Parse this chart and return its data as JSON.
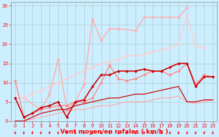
{
  "bg_color": "#cceeff",
  "grid_color": "#aacccc",
  "xlabel": "Vent moyen/en rafales ( km/h )",
  "xlim": [
    -0.5,
    23.5
  ],
  "ylim": [
    0,
    31
  ],
  "xticks": [
    0,
    1,
    2,
    3,
    4,
    5,
    6,
    7,
    8,
    9,
    10,
    11,
    12,
    13,
    14,
    15,
    16,
    17,
    18,
    19,
    20,
    21,
    22,
    23
  ],
  "yticks": [
    0,
    5,
    10,
    15,
    20,
    25,
    30
  ],
  "lines": [
    {
      "x": [
        0,
        1,
        3,
        4,
        5,
        6,
        7,
        8,
        9,
        10,
        11,
        12,
        14,
        15,
        16,
        17,
        18,
        19,
        20
      ],
      "y": [
        6,
        6,
        3,
        7,
        16,
        3,
        5,
        9.5,
        26.5,
        21,
        24,
        24,
        23.5,
        27,
        27,
        27,
        27,
        27,
        29.5
      ],
      "color": "#ffaaaa",
      "lw": 1.0,
      "marker": "D",
      "ms": 2.0,
      "zorder": 2
    },
    {
      "x": [
        0,
        1,
        2,
        3,
        4,
        5,
        6,
        7,
        8,
        9,
        10,
        11,
        12,
        13,
        14,
        15,
        16,
        17,
        18,
        19,
        20,
        21,
        22
      ],
      "y": [
        6,
        6,
        7,
        8,
        9,
        10,
        11,
        12,
        13,
        14,
        15,
        15.5,
        16,
        17,
        17,
        17.5,
        18,
        18.5,
        19,
        20,
        27.5,
        19.5,
        19
      ],
      "color": "#ffcccc",
      "lw": 1.0,
      "marker": "D",
      "ms": 2.0,
      "zorder": 2
    },
    {
      "x": [
        0,
        1,
        2,
        3,
        4,
        5,
        6,
        7,
        8,
        9,
        10,
        11,
        12,
        13,
        14,
        15,
        16,
        17,
        18,
        19,
        20,
        21,
        22,
        23
      ],
      "y": [
        10.5,
        1,
        2,
        3,
        3.5,
        4,
        4,
        5,
        5,
        6,
        10,
        14.5,
        11,
        10.5,
        11,
        12,
        13,
        13,
        12,
        13,
        15,
        9.5,
        12,
        11.5
      ],
      "color": "#ff8888",
      "lw": 1.0,
      "marker": "D",
      "ms": 2.0,
      "zorder": 3
    },
    {
      "x": [
        0,
        1,
        2,
        3,
        4,
        5,
        6,
        7,
        8,
        9,
        10,
        11,
        12,
        13,
        14,
        15,
        16,
        17,
        18,
        19,
        20,
        21,
        22,
        23
      ],
      "y": [
        6,
        1,
        2,
        3.5,
        4,
        5,
        1,
        5,
        5.5,
        9,
        12,
        12,
        13,
        13,
        13,
        13.5,
        13,
        13,
        14,
        15,
        15,
        9,
        11.5,
        11.5
      ],
      "color": "#cc0000",
      "lw": 1.2,
      "marker": "D",
      "ms": 2.0,
      "zorder": 4
    },
    {
      "x": [
        0,
        1,
        2,
        3,
        4,
        5,
        6,
        7,
        8,
        9,
        10,
        11,
        12,
        13,
        14,
        15,
        16,
        17,
        18,
        19,
        20,
        21,
        22,
        23
      ],
      "y": [
        0,
        0,
        1,
        2,
        2.5,
        3,
        3,
        4,
        4.5,
        5,
        5.5,
        6,
        6,
        6.5,
        7,
        7,
        7.5,
        8,
        8.5,
        9,
        5,
        5,
        5.5,
        5.5
      ],
      "color": "#cc0000",
      "lw": 0.9,
      "marker": null,
      "ms": 0,
      "zorder": 3
    },
    {
      "x": [
        0,
        1,
        2,
        3,
        4,
        5,
        6,
        7,
        8,
        9,
        10,
        11,
        12,
        13,
        14,
        15,
        16,
        17,
        18,
        19,
        20,
        21,
        22,
        23
      ],
      "y": [
        0,
        0,
        0.5,
        1,
        1.5,
        2,
        2.5,
        3,
        3,
        3.5,
        4,
        4,
        4.5,
        5,
        5,
        5,
        5.5,
        6,
        6,
        6.5,
        5,
        4.5,
        5,
        5.5
      ],
      "color": "#ffaaaa",
      "lw": 0.9,
      "marker": null,
      "ms": 0,
      "zorder": 2
    }
  ],
  "axis_label_fontsize": 6.5,
  "tick_fontsize": 5.0
}
